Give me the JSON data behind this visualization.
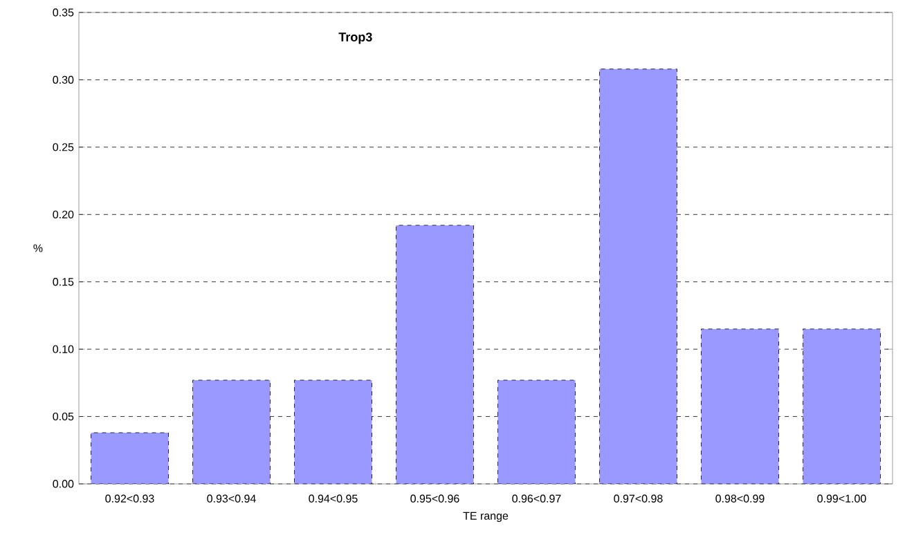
{
  "chart_data": {
    "type": "bar",
    "title": "Trop3",
    "xlabel": "TE range",
    "ylabel": "%",
    "categories": [
      "0.92<0.93",
      "0.93<0.94",
      "0.94<0.95",
      "0.95<0.96",
      "0.96<0.97",
      "0.97<0.98",
      "0.98<0.99",
      "0.99<1.00"
    ],
    "values": [
      0.038,
      0.077,
      0.077,
      0.192,
      0.077,
      0.308,
      0.115,
      0.115
    ],
    "color": "#9999ff",
    "ylim": [
      0,
      0.35
    ],
    "yticks": [
      {
        "value": 0,
        "label": "0.00"
      },
      {
        "value": 0.05,
        "label": "0.05"
      },
      {
        "value": 0.1,
        "label": "0.10"
      },
      {
        "value": 0.15,
        "label": "0.15"
      },
      {
        "value": 0.2,
        "label": "0.20"
      },
      {
        "value": 0.25,
        "label": "0.25"
      },
      {
        "value": 0.3,
        "label": "0.30"
      },
      {
        "value": 0.35,
        "label": "0.35"
      }
    ],
    "grid": "y"
  }
}
